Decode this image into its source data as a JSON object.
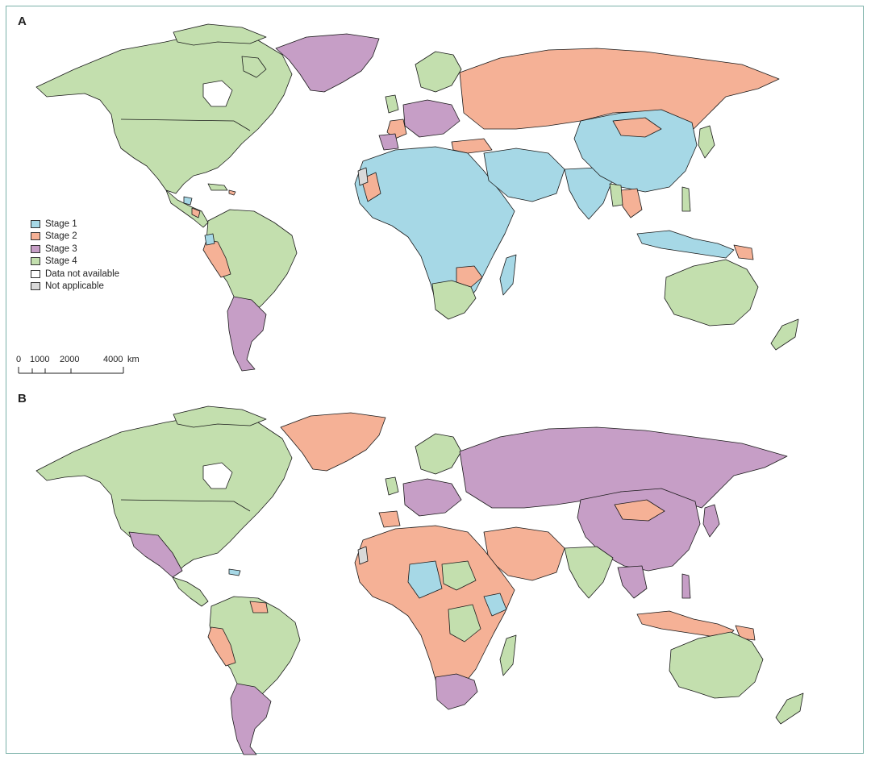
{
  "panels": [
    {
      "label": "A"
    },
    {
      "label": "B"
    }
  ],
  "legend": {
    "items": [
      {
        "label": "Stage 1",
        "color": "#a6d8e6"
      },
      {
        "label": "Stage 2",
        "color": "#f5b196"
      },
      {
        "label": "Stage 3",
        "color": "#c69ec6"
      },
      {
        "label": "Stage 4",
        "color": "#c3dfae"
      },
      {
        "label": "Data not available",
        "color": "#ffffff"
      },
      {
        "label": "Not applicable",
        "color": "#d9d9d9"
      }
    ]
  },
  "scale": {
    "ticks": [
      "0",
      "1000",
      "2000",
      "4000"
    ],
    "unit": "km"
  }
}
